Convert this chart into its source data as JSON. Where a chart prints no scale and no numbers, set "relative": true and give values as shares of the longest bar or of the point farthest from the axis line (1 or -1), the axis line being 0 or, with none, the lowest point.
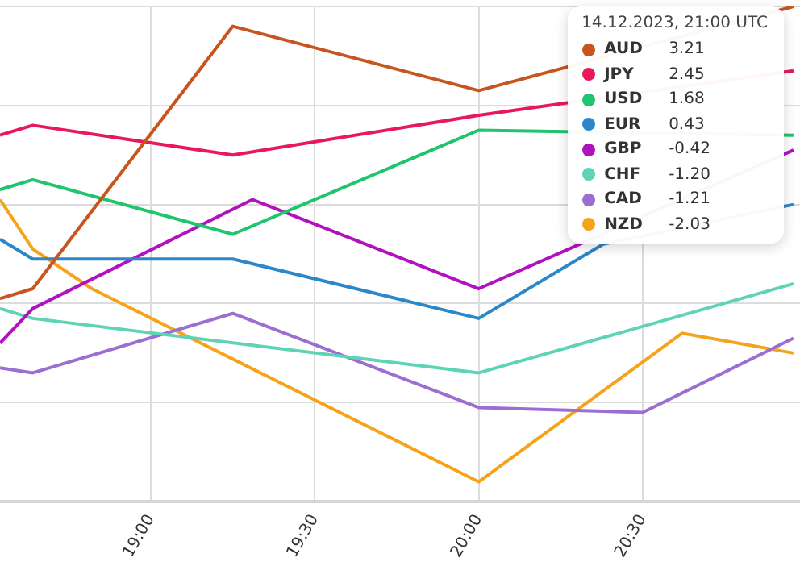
{
  "chart_data": {
    "type": "line",
    "relative": true,
    "legend_title": "14.12.2023, 21:00 UTC",
    "annotations": [
      "3.21",
      "2.45",
      "1.68",
      "0.43",
      "-0.42",
      "-1.20",
      "-1.21",
      "-2.03"
    ],
    "xlim": [
      18.54,
      20.98
    ],
    "xticks": [
      {
        "value": 19,
        "label": "19:00"
      },
      {
        "value": 19.5,
        "label": "19:30"
      },
      {
        "value": 20,
        "label": "20:00"
      },
      {
        "value": 20.5,
        "label": "20:30"
      }
    ],
    "tick_labels": "x",
    "grid": true,
    "legend": "top right",
    "marker": "none",
    "line_style": "solid",
    "series": [
      {
        "name": "AUD",
        "color": "#c8541f",
        "x": [
          18.54,
          18.64,
          19.25,
          20.0,
          20.96
        ],
        "values": [
          0.41,
          0.43,
          0.96,
          0.83,
          1.0
        ]
      },
      {
        "name": "JPY",
        "color": "#e8185a",
        "x": [
          18.54,
          18.64,
          19.25,
          20.0,
          20.96
        ],
        "values": [
          0.74,
          0.76,
          0.7,
          0.78,
          0.87
        ]
      },
      {
        "name": "USD",
        "color": "#1fc46e",
        "x": [
          18.54,
          18.64,
          19.25,
          20.0,
          20.96
        ],
        "values": [
          0.63,
          0.65,
          0.54,
          0.75,
          0.74
        ]
      },
      {
        "name": "EUR",
        "color": "#2b87c8",
        "x": [
          18.54,
          18.64,
          19.25,
          20.0,
          20.38,
          20.96
        ],
        "values": [
          0.53,
          0.49,
          0.49,
          0.37,
          0.52,
          0.6
        ]
      },
      {
        "name": "GBP",
        "color": "#b012c0",
        "x": [
          18.54,
          18.64,
          19.31,
          20.0,
          20.96
        ],
        "values": [
          0.32,
          0.39,
          0.61,
          0.43,
          0.71
        ]
      },
      {
        "name": "CHF",
        "color": "#5fd3b5",
        "x": [
          18.54,
          18.64,
          20.0,
          20.96
        ],
        "values": [
          0.39,
          0.37,
          0.26,
          0.44
        ]
      },
      {
        "name": "CAD",
        "color": "#9b6fd1",
        "x": [
          18.54,
          18.64,
          19.25,
          20.0,
          20.5,
          20.96
        ],
        "values": [
          0.27,
          0.26,
          0.38,
          0.19,
          0.18,
          0.33
        ]
      },
      {
        "name": "NZD",
        "color": "#f5a31a",
        "x": [
          18.54,
          18.64,
          18.82,
          20.0,
          20.62,
          20.96
        ],
        "values": [
          0.61,
          0.51,
          0.43,
          0.04,
          0.34,
          0.3
        ]
      }
    ]
  }
}
